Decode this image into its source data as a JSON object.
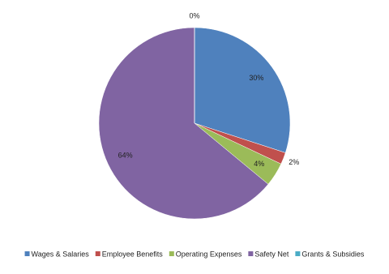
{
  "chart_data": {
    "type": "pie",
    "categories": [
      "Wages & Salaries",
      "Employee Benefits",
      "Operating Expenses",
      "Safety Net",
      "Grants & Subsidies"
    ],
    "values": [
      30,
      2,
      4,
      64,
      0
    ],
    "value_labels": [
      "30%",
      "2%",
      "4%",
      "64%",
      "0%"
    ],
    "colors": [
      "#4f81bd",
      "#c0504d",
      "#9bbb59",
      "#8064a2",
      "#4bacc6"
    ],
    "legend": "bottom"
  }
}
